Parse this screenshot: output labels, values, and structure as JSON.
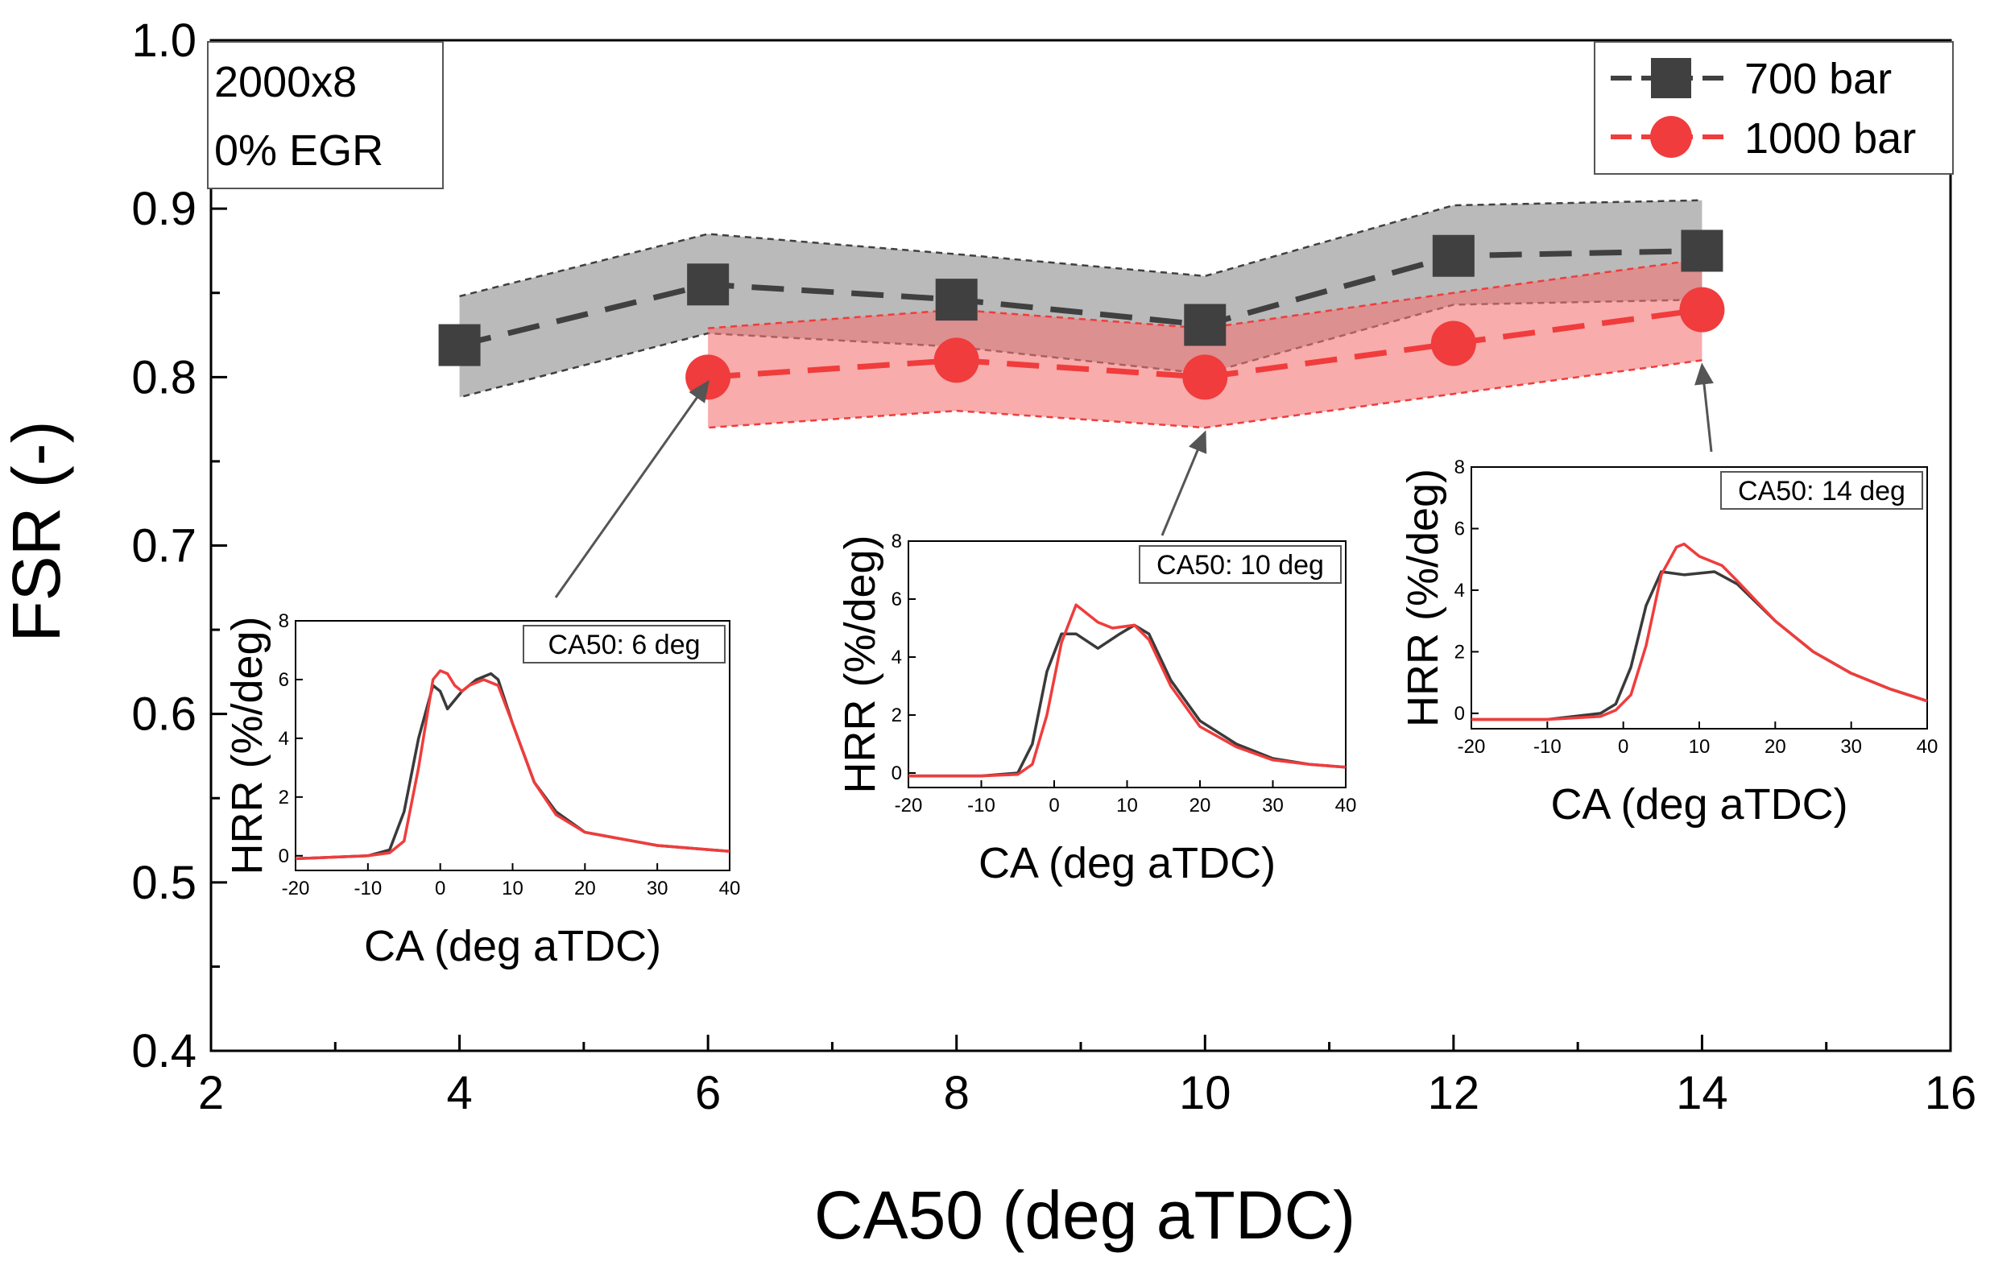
{
  "chart_data": {
    "type": "line",
    "title": "",
    "xlabel": "CA50 (deg aTDC)",
    "ylabel": "FSR (-)",
    "xlim": [
      2,
      16
    ],
    "ylim": [
      0.4,
      1.0
    ],
    "xticks": [
      "2",
      "4",
      "6",
      "8",
      "10",
      "12",
      "14",
      "16"
    ],
    "yticks": [
      "0.4",
      "0.5",
      "0.6",
      "0.7",
      "0.8",
      "0.9",
      "1.0"
    ],
    "annotation": {
      "line1": "2000x8",
      "line2": "0% EGR"
    },
    "legend_position": "top-right",
    "series": [
      {
        "name": "700 bar",
        "color": "#404040",
        "band_color": "#8c8c8c",
        "marker": "square",
        "x": [
          4,
          6,
          8,
          10,
          12,
          14
        ],
        "values": [
          0.819,
          0.855,
          0.846,
          0.831,
          0.872,
          0.875
        ],
        "upper": [
          0.848,
          0.885,
          0.873,
          0.86,
          0.902,
          0.905
        ],
        "lower": [
          0.788,
          0.826,
          0.818,
          0.802,
          0.843,
          0.846
        ]
      },
      {
        "name": "1000 bar",
        "color": "#f03c3c",
        "band_color": "#f47474",
        "marker": "circle",
        "x": [
          6,
          8,
          10,
          12,
          14
        ],
        "values": [
          0.8,
          0.81,
          0.8,
          0.82,
          0.84
        ],
        "upper": [
          0.829,
          0.84,
          0.829,
          0.85,
          0.87
        ],
        "lower": [
          0.77,
          0.78,
          0.77,
          0.79,
          0.81
        ]
      }
    ],
    "insets": [
      {
        "title": "CA50: 6 deg",
        "points_to": {
          "x": 6,
          "y": 0.8
        },
        "xlabel": "CA (deg aTDC)",
        "ylabel": "HRR (%/deg)",
        "xlim": [
          -20,
          40
        ],
        "ylim": [
          -0.5,
          8
        ],
        "xticks": [
          "-20",
          "-10",
          "0",
          "10",
          "20",
          "30",
          "40"
        ],
        "yticks": [
          "0",
          "2",
          "4",
          "6",
          "8"
        ],
        "series": [
          {
            "name": "700 bar",
            "color": "#3a3a3a",
            "x": [
              -20,
              -10,
              -7,
              -5,
              -3,
              -1,
              0,
              1,
              3,
              5,
              7,
              8,
              10,
              13,
              16,
              20,
              30,
              40
            ],
            "y": [
              -0.1,
              0.0,
              0.2,
              1.5,
              4.0,
              5.8,
              5.6,
              5.0,
              5.6,
              6.0,
              6.2,
              6.0,
              4.5,
              2.5,
              1.5,
              0.8,
              0.35,
              0.15
            ]
          },
          {
            "name": "1000 bar",
            "color": "#f03c3c",
            "x": [
              -20,
              -10,
              -7,
              -5,
              -3,
              -1,
              0,
              1,
              2,
              3,
              4,
              6,
              8,
              10,
              13,
              16,
              20,
              30,
              40
            ],
            "y": [
              -0.1,
              0.0,
              0.1,
              0.5,
              3.0,
              6.0,
              6.3,
              6.2,
              5.8,
              5.6,
              5.8,
              6.0,
              5.8,
              4.5,
              2.5,
              1.4,
              0.8,
              0.35,
              0.15
            ]
          }
        ]
      },
      {
        "title": "CA50: 10 deg",
        "points_to": {
          "x": 10,
          "y": 0.77
        },
        "xlabel": "CA (deg aTDC)",
        "ylabel": "HRR (%/deg)",
        "xlim": [
          -20,
          40
        ],
        "ylim": [
          -0.5,
          8
        ],
        "xticks": [
          "-20",
          "-10",
          "0",
          "10",
          "20",
          "30",
          "40"
        ],
        "yticks": [
          "0",
          "2",
          "4",
          "6",
          "8"
        ],
        "series": [
          {
            "name": "700 bar",
            "color": "#3a3a3a",
            "x": [
              -20,
              -10,
              -5,
              -3,
              -1,
              1,
              3,
              6,
              9,
              11,
              13,
              16,
              20,
              25,
              30,
              35,
              40
            ],
            "y": [
              -0.1,
              -0.1,
              0.0,
              1.0,
              3.5,
              4.8,
              4.8,
              4.3,
              4.8,
              5.1,
              4.8,
              3.2,
              1.8,
              1.0,
              0.5,
              0.3,
              0.2
            ]
          },
          {
            "name": "1000 bar",
            "color": "#f03c3c",
            "x": [
              -20,
              -10,
              -5,
              -3,
              -1,
              1,
              3,
              4,
              6,
              8,
              11,
              13,
              16,
              20,
              25,
              30,
              35,
              40
            ],
            "y": [
              -0.1,
              -0.1,
              -0.05,
              0.3,
              2.0,
              4.5,
              5.8,
              5.6,
              5.2,
              5.0,
              5.1,
              4.6,
              3.0,
              1.6,
              0.9,
              0.45,
              0.3,
              0.2
            ]
          }
        ]
      },
      {
        "title": "CA50: 14 deg",
        "points_to": {
          "x": 14,
          "y": 0.81
        },
        "xlabel": "CA (deg aTDC)",
        "ylabel": "HRR (%/deg)",
        "xlim": [
          -20,
          40
        ],
        "ylim": [
          -0.5,
          8
        ],
        "xticks": [
          "-20",
          "-10",
          "0",
          "10",
          "20",
          "30",
          "40"
        ],
        "yticks": [
          "0",
          "2",
          "4",
          "6",
          "8"
        ],
        "series": [
          {
            "name": "700 bar",
            "color": "#3a3a3a",
            "x": [
              -20,
              -10,
              -3,
              -1,
              1,
              3,
              5,
              8,
              12,
              15,
              20,
              25,
              30,
              35,
              40
            ],
            "y": [
              -0.2,
              -0.2,
              0.0,
              0.3,
              1.5,
              3.5,
              4.6,
              4.5,
              4.6,
              4.2,
              3.0,
              2.0,
              1.3,
              0.8,
              0.4
            ]
          },
          {
            "name": "1000 bar",
            "color": "#f03c3c",
            "x": [
              -20,
              -10,
              -3,
              -1,
              1,
              3,
              5,
              7,
              8,
              10,
              13,
              15,
              20,
              25,
              30,
              35,
              40
            ],
            "y": [
              -0.2,
              -0.2,
              -0.1,
              0.1,
              0.6,
              2.2,
              4.5,
              5.4,
              5.5,
              5.1,
              4.8,
              4.3,
              3.0,
              2.0,
              1.3,
              0.8,
              0.4
            ]
          }
        ]
      }
    ]
  }
}
